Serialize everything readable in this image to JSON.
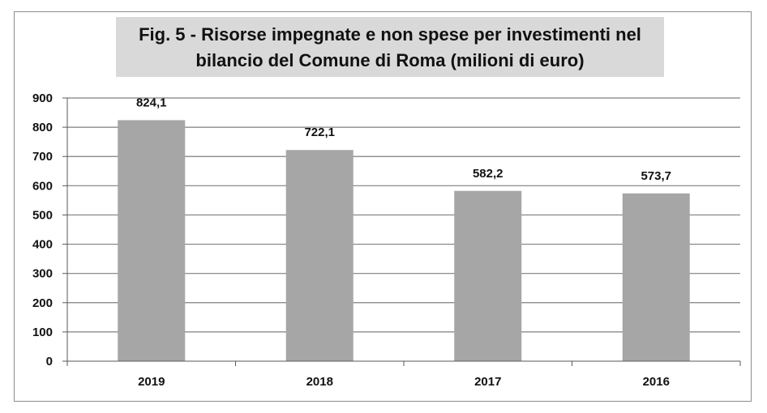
{
  "chart_data": {
    "type": "bar",
    "title_lines": [
      "Fig. 5 - Risorse impegnate e non spese per investimenti nel",
      "bilancio del Comune di Roma (milioni di euro)"
    ],
    "categories": [
      "2019",
      "2018",
      "2017",
      "2016"
    ],
    "values": [
      824.1,
      722.1,
      582.2,
      573.7
    ],
    "value_labels": [
      "824,1",
      "722,1",
      "582,2",
      "573,7"
    ],
    "ylim": [
      0,
      900
    ],
    "yticks": [
      0,
      100,
      200,
      300,
      400,
      500,
      600,
      700,
      800,
      900
    ],
    "grid": true,
    "legend": "none",
    "colors": {
      "bar": "#a6a6a6",
      "title_background": "#d9d9d9",
      "gridline": "#7f7f7f"
    }
  }
}
